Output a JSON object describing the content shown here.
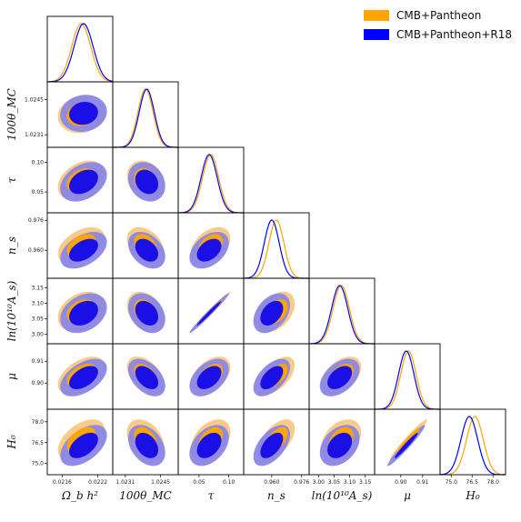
{
  "chart_data": {
    "type": "triangle-plot",
    "colors": {
      "cmb_pantheon": "#FFA500",
      "cmb_pantheon_r18": "#0000FF"
    },
    "legend": {
      "placement": "top-right",
      "entries": [
        "CMB+Pantheon",
        "CMB+Pantheon+R18"
      ]
    },
    "parameters": [
      {
        "label": "Ω_b h²",
        "ticks": [
          "0.0216",
          "0.0222"
        ],
        "tick_values": [
          0.0216,
          0.0222
        ],
        "range": [
          0.02135,
          0.02245
        ],
        "means": [
          0.02192,
          0.02196
        ],
        "sigmas": [
          0.00016,
          0.00016
        ]
      },
      {
        "label": "100θ_MC",
        "ticks": [
          "1.0231",
          "1.0245"
        ],
        "tick_values": [
          1.0231,
          1.0245
        ],
        "range": [
          1.0226,
          1.0252
        ],
        "means": [
          1.0239,
          1.02395
        ],
        "sigmas": [
          0.0003,
          0.0003
        ]
      },
      {
        "label": "τ",
        "ticks": [
          "0.05",
          "0.10"
        ],
        "tick_values": [
          0.05,
          0.1
        ],
        "range": [
          0.015,
          0.125
        ],
        "means": [
          0.0695,
          0.067
        ],
        "sigmas": [
          0.0135,
          0.0135
        ]
      },
      {
        "label": "n_s",
        "ticks": [
          "0.960",
          "0.976"
        ],
        "tick_values": [
          0.96,
          0.976
        ],
        "range": [
          0.945,
          0.98
        ],
        "means": [
          0.9625,
          0.96
        ],
        "sigmas": [
          0.004,
          0.004
        ]
      },
      {
        "label": "ln(10¹⁰A_s)",
        "ticks": [
          "3.00",
          "3.05",
          "3.10",
          "3.15"
        ],
        "tick_values": [
          3.0,
          3.05,
          3.1,
          3.15
        ],
        "range": [
          2.97,
          3.18
        ],
        "means": [
          3.073,
          3.068
        ],
        "sigmas": [
          0.026,
          0.026
        ]
      },
      {
        "label": "μ",
        "ticks": [
          "0.90",
          "0.91"
        ],
        "tick_values": [
          0.9,
          0.91
        ],
        "range": [
          0.888,
          0.918
        ],
        "means": [
          0.9035,
          0.9025
        ],
        "sigmas": [
          0.0035,
          0.0035
        ]
      },
      {
        "label": "H₀",
        "ticks": [
          "75.0",
          "76.5",
          "78.0"
        ],
        "tick_values": [
          75.0,
          76.5,
          78.0
        ],
        "range": [
          74.2,
          78.9
        ],
        "means": [
          76.7,
          76.3
        ],
        "sigmas": [
          0.6,
          0.6
        ]
      }
    ]
  }
}
